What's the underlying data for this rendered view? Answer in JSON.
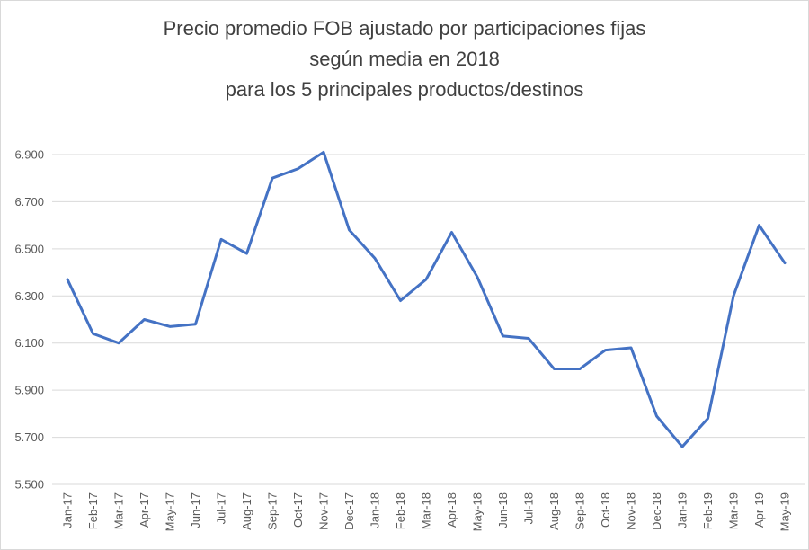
{
  "chart": {
    "title_lines": [
      "Precio promedio FOB ajustado por participaciones fijas",
      "según media en 2018",
      "para los 5 principales productos/destinos"
    ]
  },
  "chart_data": {
    "type": "line",
    "title": "Precio promedio FOB ajustado por participaciones fijas según media en 2018 para los 5 principales productos/destinos",
    "xlabel": "",
    "ylabel": "",
    "legend": false,
    "grid": true,
    "ylim": [
      5.5,
      6.9
    ],
    "y_ticks": [
      {
        "label": "5.500",
        "value": 5.5
      },
      {
        "label": "5.700",
        "value": 5.7
      },
      {
        "label": "5.900",
        "value": 5.9
      },
      {
        "label": "6.100",
        "value": 6.1
      },
      {
        "label": "6.300",
        "value": 6.3
      },
      {
        "label": "6.500",
        "value": 6.5
      },
      {
        "label": "6.700",
        "value": 6.7
      },
      {
        "label": "6.900",
        "value": 6.9
      }
    ],
    "categories": [
      "Jan-17",
      "Feb-17",
      "Mar-17",
      "Apr-17",
      "May-17",
      "Jun-17",
      "Jul-17",
      "Aug-17",
      "Sep-17",
      "Oct-17",
      "Nov-17",
      "Dec-17",
      "Jan-18",
      "Feb-18",
      "Mar-18",
      "Apr-18",
      "May-18",
      "Jun-18",
      "Jul-18",
      "Aug-18",
      "Sep-18",
      "Oct-18",
      "Nov-18",
      "Dec-18",
      "Jan-19",
      "Feb-19",
      "Mar-19",
      "Apr-19",
      "May-19"
    ],
    "values": [
      6.37,
      6.14,
      6.1,
      6.2,
      6.17,
      6.18,
      6.54,
      6.48,
      6.8,
      6.84,
      6.91,
      6.58,
      6.46,
      6.28,
      6.37,
      6.57,
      6.38,
      6.13,
      6.12,
      5.99,
      5.99,
      6.07,
      6.08,
      5.79,
      5.66,
      5.78,
      6.3,
      6.6,
      6.44
    ],
    "colors": {
      "line": "#4472C4",
      "gridline": "#d9d9d9",
      "tick_label": "#595959",
      "title": "#404040"
    }
  }
}
